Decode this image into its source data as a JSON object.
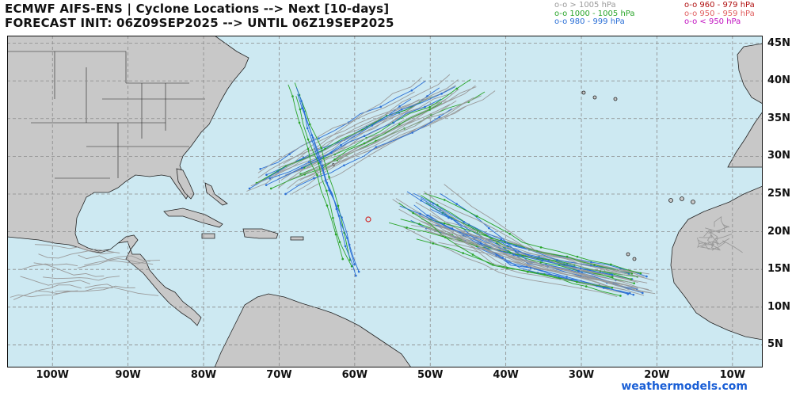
{
  "header": {
    "title_line1": "ECMWF AIFS-ENS | Cyclone Locations --> Next [10-days]",
    "title_line2": "FORECAST INIT: 06Z09SEP2025 --> UNTIL 06Z19SEP2025"
  },
  "legend": [
    {
      "label": "o-o > 1005 hPa",
      "color": "#9a9a9a"
    },
    {
      "label": "o-o 1000 - 1005 hPa",
      "color": "#2aa52a"
    },
    {
      "label": "o-o 980 - 999 hPa",
      "color": "#2a6fd6"
    },
    {
      "label": "o-o 960 - 979 hPa",
      "color": "#b01010"
    },
    {
      "label": "o-o 950 - 959 hPa",
      "color": "#e06060"
    },
    {
      "label": "o-o < 950 hPa",
      "color": "#c010c0"
    }
  ],
  "map": {
    "ocean_color": "#cde9f2",
    "land_color": "#c8c8c8",
    "lon_range": [
      -106,
      -6
    ],
    "lat_range": [
      2,
      46
    ],
    "lon_labels": [
      "100W",
      "90W",
      "80W",
      "70W",
      "60W",
      "50W",
      "40W",
      "30W",
      "20W",
      "10W"
    ],
    "lat_labels": [
      "45N",
      "40N",
      "35N",
      "30N",
      "25N",
      "20N",
      "15N",
      "10N",
      "5N"
    ]
  },
  "credit": "weathermodels.com"
}
